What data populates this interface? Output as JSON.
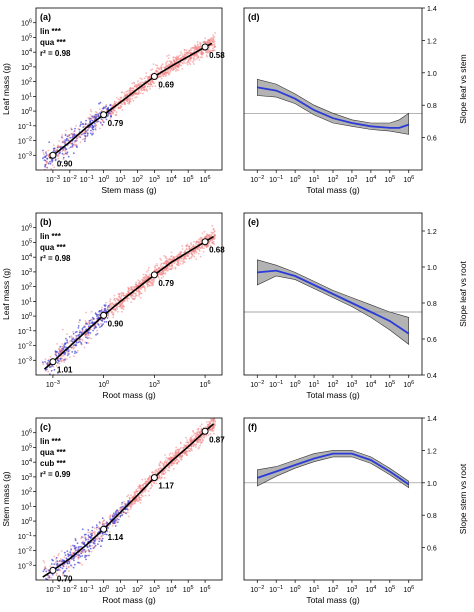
{
  "colors": {
    "scatter_red": "#f08080",
    "scatter_blue": "#4a4ad8",
    "fit_line": "#000000",
    "loess_line": "#2b3bd6",
    "band_fill": "#9a9a9a",
    "ref_line": "#8a8a8a"
  },
  "chart_data": [
    {
      "id": "a",
      "type": "scatter",
      "panel_label": "(a)",
      "stats": [
        "lin ***",
        "qua ***",
        "r² = 0.98"
      ],
      "xlabel": "Stem mass (g)",
      "ylabel": "Leaf mass (g)",
      "x_exp_range": [
        -4,
        7
      ],
      "y_exp_range": [
        -4,
        7
      ],
      "x_ticks": [
        -3,
        -2,
        -1,
        0,
        1,
        2,
        3,
        4,
        5,
        6
      ],
      "y_ticks": [
        -3,
        -2,
        -1,
        0,
        1,
        2,
        3,
        4,
        5,
        6
      ],
      "curve": [
        [
          -3.2,
          -3.2
        ],
        [
          -2,
          -2.1
        ],
        [
          -1,
          -1.1
        ],
        [
          0,
          -0.25
        ],
        [
          1,
          0.6
        ],
        [
          2,
          1.5
        ],
        [
          3,
          2.35
        ],
        [
          4,
          3.05
        ],
        [
          5,
          3.7
        ],
        [
          6,
          4.35
        ],
        [
          6.4,
          4.6
        ]
      ],
      "markers": [
        {
          "x": -3,
          "y": -3.0,
          "label": "0.90"
        },
        {
          "x": 0,
          "y": -0.25,
          "label": "0.79"
        },
        {
          "x": 3,
          "y": 2.35,
          "label": "0.69"
        },
        {
          "x": 6,
          "y": 4.35,
          "label": "0.58"
        }
      ],
      "scatter": {
        "x_from": -3.6,
        "x_to": 6.6,
        "blue_below_x": 0.5
      }
    },
    {
      "id": "b",
      "type": "scatter",
      "panel_label": "(b)",
      "stats": [
        "lin ***",
        "qua ***",
        "r² = 0.98"
      ],
      "xlabel": "Root mass (g)",
      "ylabel": "Leaf mass (g)",
      "x_exp_range": [
        -4,
        7
      ],
      "y_exp_range": [
        -4,
        7
      ],
      "x_ticks": [
        -3,
        0,
        3,
        6
      ],
      "y_ticks": [
        -3,
        -2,
        -1,
        0,
        1,
        2,
        3,
        4,
        5,
        6
      ],
      "curve": [
        [
          -3.5,
          -3.6
        ],
        [
          -3,
          -3.1
        ],
        [
          -1,
          -1.0
        ],
        [
          0,
          0.05
        ],
        [
          1,
          1.0
        ],
        [
          2,
          1.9
        ],
        [
          3,
          2.8
        ],
        [
          4,
          3.65
        ],
        [
          5,
          4.35
        ],
        [
          6,
          5.05
        ],
        [
          6.5,
          5.4
        ]
      ],
      "markers": [
        {
          "x": -3,
          "y": -3.1,
          "label": "1.01"
        },
        {
          "x": 0,
          "y": 0.05,
          "label": "0.90"
        },
        {
          "x": 3,
          "y": 2.8,
          "label": "0.79"
        },
        {
          "x": 6,
          "y": 5.05,
          "label": "0.68"
        }
      ],
      "scatter": {
        "x_from": -3.6,
        "x_to": 6.6,
        "blue_below_x": 0.3
      }
    },
    {
      "id": "c",
      "type": "scatter",
      "panel_label": "(c)",
      "stats": [
        "lin ***",
        "qua ***",
        "cub ***",
        "r² = 0.99"
      ],
      "xlabel": "Root mass (g)",
      "ylabel": "Stem mass (g)",
      "x_exp_range": [
        -4,
        7
      ],
      "y_exp_range": [
        -4,
        7
      ],
      "x_ticks": [
        -3,
        -2,
        -1,
        0,
        1,
        2,
        3,
        4,
        5,
        6
      ],
      "y_ticks": [
        -3,
        -2,
        -1,
        0,
        1,
        2,
        3,
        4,
        5,
        6
      ],
      "curve": [
        [
          -3.6,
          -3.8
        ],
        [
          -3,
          -3.35
        ],
        [
          -2,
          -2.55
        ],
        [
          -1,
          -1.6
        ],
        [
          0,
          -0.55
        ],
        [
          1,
          0.6
        ],
        [
          2,
          1.75
        ],
        [
          3,
          2.95
        ],
        [
          4,
          4.05
        ],
        [
          5,
          5.05
        ],
        [
          6,
          6.1
        ],
        [
          6.5,
          6.6
        ]
      ],
      "markers": [
        {
          "x": -3,
          "y": -3.35,
          "label": "0.70"
        },
        {
          "x": 0,
          "y": -0.55,
          "label": "1.14"
        },
        {
          "x": 3,
          "y": 2.95,
          "label": "1.17"
        },
        {
          "x": 6,
          "y": 6.1,
          "label": "0.87"
        }
      ],
      "scatter": {
        "x_from": -3.6,
        "x_to": 6.6,
        "blue_below_x": 1.5
      }
    },
    {
      "id": "d",
      "type": "line",
      "panel_label": "(d)",
      "xlabel": "Total mass (g)",
      "ylabel": "Slope leaf vs stem",
      "x_exp_range": [
        -2.7,
        6.7
      ],
      "ylim": [
        0.4,
        1.4
      ],
      "x_ticks": [
        -2,
        -1,
        0,
        1,
        2,
        3,
        4,
        5,
        6
      ],
      "y_ticks": [
        0.6,
        0.8,
        1.0,
        1.2,
        1.4
      ],
      "ref_line": 0.75,
      "series": [
        {
          "x": [
            -2,
            -1,
            0,
            1,
            2,
            3,
            4,
            5,
            5.5,
            6
          ],
          "y": [
            0.91,
            0.89,
            0.84,
            0.77,
            0.72,
            0.69,
            0.67,
            0.66,
            0.66,
            0.68
          ]
        }
      ],
      "band_upper": [
        0.96,
        0.93,
        0.87,
        0.8,
        0.75,
        0.71,
        0.69,
        0.69,
        0.71,
        0.75
      ],
      "band_lower": [
        0.86,
        0.85,
        0.81,
        0.74,
        0.69,
        0.67,
        0.65,
        0.64,
        0.63,
        0.62
      ]
    },
    {
      "id": "e",
      "type": "line",
      "panel_label": "(e)",
      "xlabel": "Total mass (g)",
      "ylabel": "Slope leaf vs root",
      "x_exp_range": [
        -2.7,
        6.7
      ],
      "ylim": [
        0.4,
        1.3
      ],
      "x_ticks": [
        -2,
        -1,
        0,
        1,
        2,
        3,
        4,
        5,
        6
      ],
      "y_ticks": [
        0.4,
        0.6,
        0.8,
        1.0,
        1.2
      ],
      "ref_line": 0.75,
      "series": [
        {
          "x": [
            -2,
            -1,
            0,
            1,
            2,
            3,
            4,
            5,
            6
          ],
          "y": [
            0.97,
            0.98,
            0.95,
            0.9,
            0.85,
            0.8,
            0.75,
            0.7,
            0.63
          ]
        }
      ],
      "band_upper": [
        1.04,
        1.01,
        0.97,
        0.92,
        0.87,
        0.83,
        0.79,
        0.75,
        0.72
      ],
      "band_lower": [
        0.9,
        0.95,
        0.93,
        0.88,
        0.83,
        0.78,
        0.72,
        0.65,
        0.57
      ]
    },
    {
      "id": "f",
      "type": "line",
      "panel_label": "(f)",
      "xlabel": "Total mass (g)",
      "ylabel": "Slope stem vs root",
      "x_exp_range": [
        -2.7,
        6.7
      ],
      "ylim": [
        0.4,
        1.4
      ],
      "x_ticks": [
        -2,
        -1,
        0,
        1,
        2,
        3,
        4,
        5,
        6
      ],
      "y_ticks": [
        0.6,
        0.8,
        1.0,
        1.2,
        1.4
      ],
      "ref_line": 1.0,
      "series": [
        {
          "x": [
            -2,
            -1,
            0,
            1,
            2,
            3,
            4,
            5,
            6
          ],
          "y": [
            1.03,
            1.07,
            1.11,
            1.15,
            1.18,
            1.18,
            1.14,
            1.07,
            0.99
          ]
        }
      ],
      "band_upper": [
        1.08,
        1.1,
        1.14,
        1.18,
        1.2,
        1.2,
        1.16,
        1.09,
        1.01
      ],
      "band_lower": [
        0.98,
        1.04,
        1.09,
        1.13,
        1.16,
        1.16,
        1.12,
        1.05,
        0.97
      ]
    }
  ]
}
